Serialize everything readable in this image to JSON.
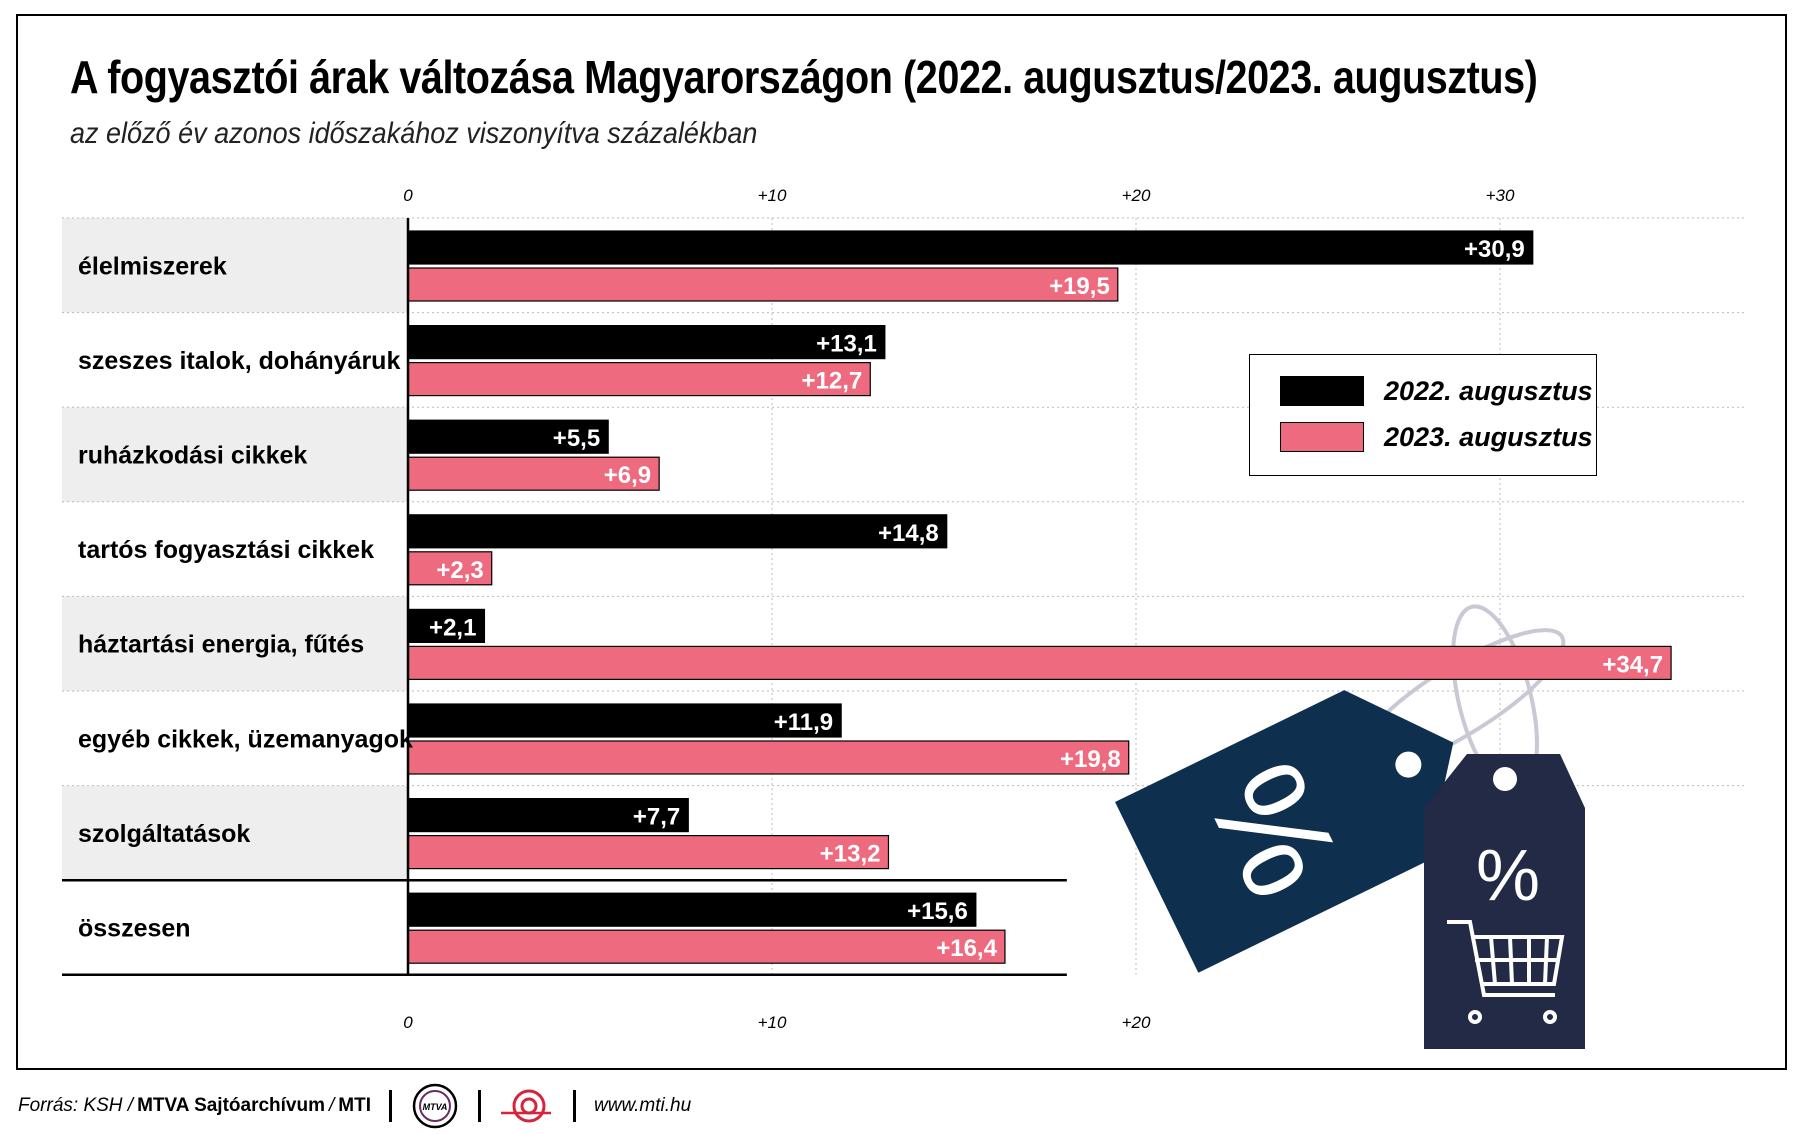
{
  "title": "A fogyasztói árak változása Magyarországon (2022. augusztus/2023. augusztus)",
  "subtitle": "az előző év azonos időszakához viszonyítva százalékban",
  "colors": {
    "series_2022": "#000000",
    "series_2023": "#ee6a7f",
    "band": "#eeeeee",
    "tag_dark": "#0e2f4d",
    "tag_navy": "#222a45"
  },
  "chart_data": {
    "type": "bar",
    "orientation": "horizontal",
    "categories": [
      "élelmiszerek",
      "szeszes italok, dohányáruk",
      "ruházkodási cikkek",
      "tartós fogyasztási cikkek",
      "háztartási energia, fűtés",
      "egyéb cikkek, üzemanyagok",
      "szolgáltatások",
      "összesen"
    ],
    "series": [
      {
        "name": "2022. augusztus",
        "values": [
          30.9,
          13.1,
          5.5,
          14.8,
          2.1,
          11.9,
          7.7,
          15.6
        ],
        "labels": [
          "+30,9",
          "+13,1",
          "+5,5",
          "+14,8",
          "+2,1",
          "+11,9",
          "+7,7",
          "+15,6"
        ]
      },
      {
        "name": "2023. augusztus",
        "values": [
          19.5,
          12.7,
          6.9,
          2.3,
          34.7,
          19.8,
          13.2,
          16.4
        ],
        "labels": [
          "+19,5",
          "+12,7",
          "+6,9",
          "+2,3",
          "+34,7",
          "+19,8",
          "+13,2",
          "+16,4"
        ]
      }
    ],
    "top_ticks": [
      {
        "v": 0,
        "label": "0"
      },
      {
        "v": 10,
        "label": "+10"
      },
      {
        "v": 20,
        "label": "+20"
      },
      {
        "v": 30,
        "label": "+30"
      }
    ],
    "bottom_ticks": [
      {
        "v": 0,
        "label": "0"
      },
      {
        "v": 10,
        "label": "+10"
      },
      {
        "v": 20,
        "label": "+20"
      }
    ],
    "xlim": [
      0,
      35
    ],
    "grid": true,
    "legend_position": "right"
  },
  "legend": {
    "item_2022": "2022. augusztus",
    "item_2023": "2023. augusztus"
  },
  "footer": {
    "source_prefix": "Forrás: KSH / ",
    "source_bold": "MTVA Sajtóarchívum",
    "source_sep": " / ",
    "source_bold2": "MTI",
    "logo_text": "MTVA",
    "url": "www.mti.hu"
  }
}
